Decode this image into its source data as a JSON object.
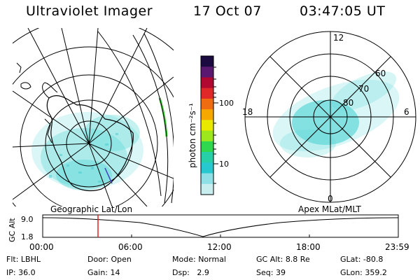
{
  "header": {
    "title": "Ultraviolet Imager",
    "date": "17 Oct 07",
    "time": "03:47:05 UT"
  },
  "left_panel": {
    "caption": "Geographic Lat/Lon"
  },
  "right_panel": {
    "caption": "Apex MLat/MLT",
    "mlt_labels": {
      "top": "12",
      "left": "18",
      "right": "6",
      "bottom": "0"
    },
    "mlat_labels": [
      "60",
      "70",
      "80"
    ]
  },
  "colorbar": {
    "unit_label": "photon cm⁻²s⁻¹",
    "ticks": [
      "100",
      "10"
    ],
    "colors": [
      "#1a0a40",
      "#5a1870",
      "#b00830",
      "#e02828",
      "#f06c10",
      "#f6a800",
      "#e8e800",
      "#9ce81c",
      "#30d850",
      "#28d0a8",
      "#28c8d0",
      "#8ee0e6",
      "#c8eef0"
    ]
  },
  "timeline": {
    "axis_label": "GC Alt",
    "y_ticks": [
      "9.0",
      "1.8"
    ],
    "x_ticks": [
      "00:00",
      "06:00",
      "12:00",
      "18:00",
      "23:59"
    ],
    "marker_color": "#e02020"
  },
  "status": {
    "filter": {
      "label": "Flt:",
      "value": "LBHL"
    },
    "ip": {
      "label": "IP:",
      "value": "36.0"
    },
    "door": {
      "label": "Door:",
      "value": "Open"
    },
    "gain": {
      "label": "Gain:",
      "value": "14"
    },
    "mode": {
      "label": "Mode:",
      "value": "Normal"
    },
    "dsp": {
      "label": "Dsp:",
      "value": "2.9"
    },
    "gc_alt": {
      "label": "GC Alt:",
      "value": "8.8 Re"
    },
    "seq": {
      "label": "Seq:",
      "value": "39"
    },
    "glat": {
      "label": "GLat:",
      "value": "-80.8"
    },
    "glon": {
      "label": "GLon:",
      "value": "359.2"
    }
  }
}
